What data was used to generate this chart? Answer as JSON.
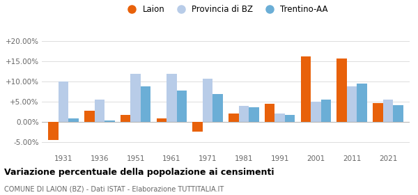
{
  "years": [
    1931,
    1936,
    1951,
    1961,
    1971,
    1981,
    1991,
    2001,
    2011,
    2021
  ],
  "laion": [
    -4.5,
    2.7,
    1.8,
    0.9,
    -2.5,
    2.0,
    4.5,
    16.2,
    15.7,
    4.7
  ],
  "provincia_bz": [
    10.0,
    5.6,
    11.9,
    11.9,
    10.7,
    3.9,
    2.1,
    5.0,
    8.8,
    5.5
  ],
  "trentino_aa": [
    0.8,
    0.3,
    8.8,
    7.8,
    6.9,
    3.6,
    1.8,
    5.5,
    9.5,
    4.1
  ],
  "color_laion": "#e8610a",
  "color_provincia": "#b8cce8",
  "color_trentino": "#6baed6",
  "title": "Variazione percentuale della popolazione ai censimenti",
  "subtitle": "COMUNE DI LAION (BZ) - Dati ISTAT - Elaborazione TUTTITALIA.IT",
  "ylabel_ticks": [
    "-5.00%",
    "0.00%",
    "+5.00%",
    "+10.00%",
    "+15.00%",
    "+20.00%"
  ],
  "yticks": [
    -5.0,
    0.0,
    5.0,
    10.0,
    15.0,
    20.0
  ],
  "ylim": [
    -7.5,
    22.5
  ],
  "bar_width": 0.28,
  "legend_labels": [
    "Laion",
    "Provincia di BZ",
    "Trentino-AA"
  ]
}
